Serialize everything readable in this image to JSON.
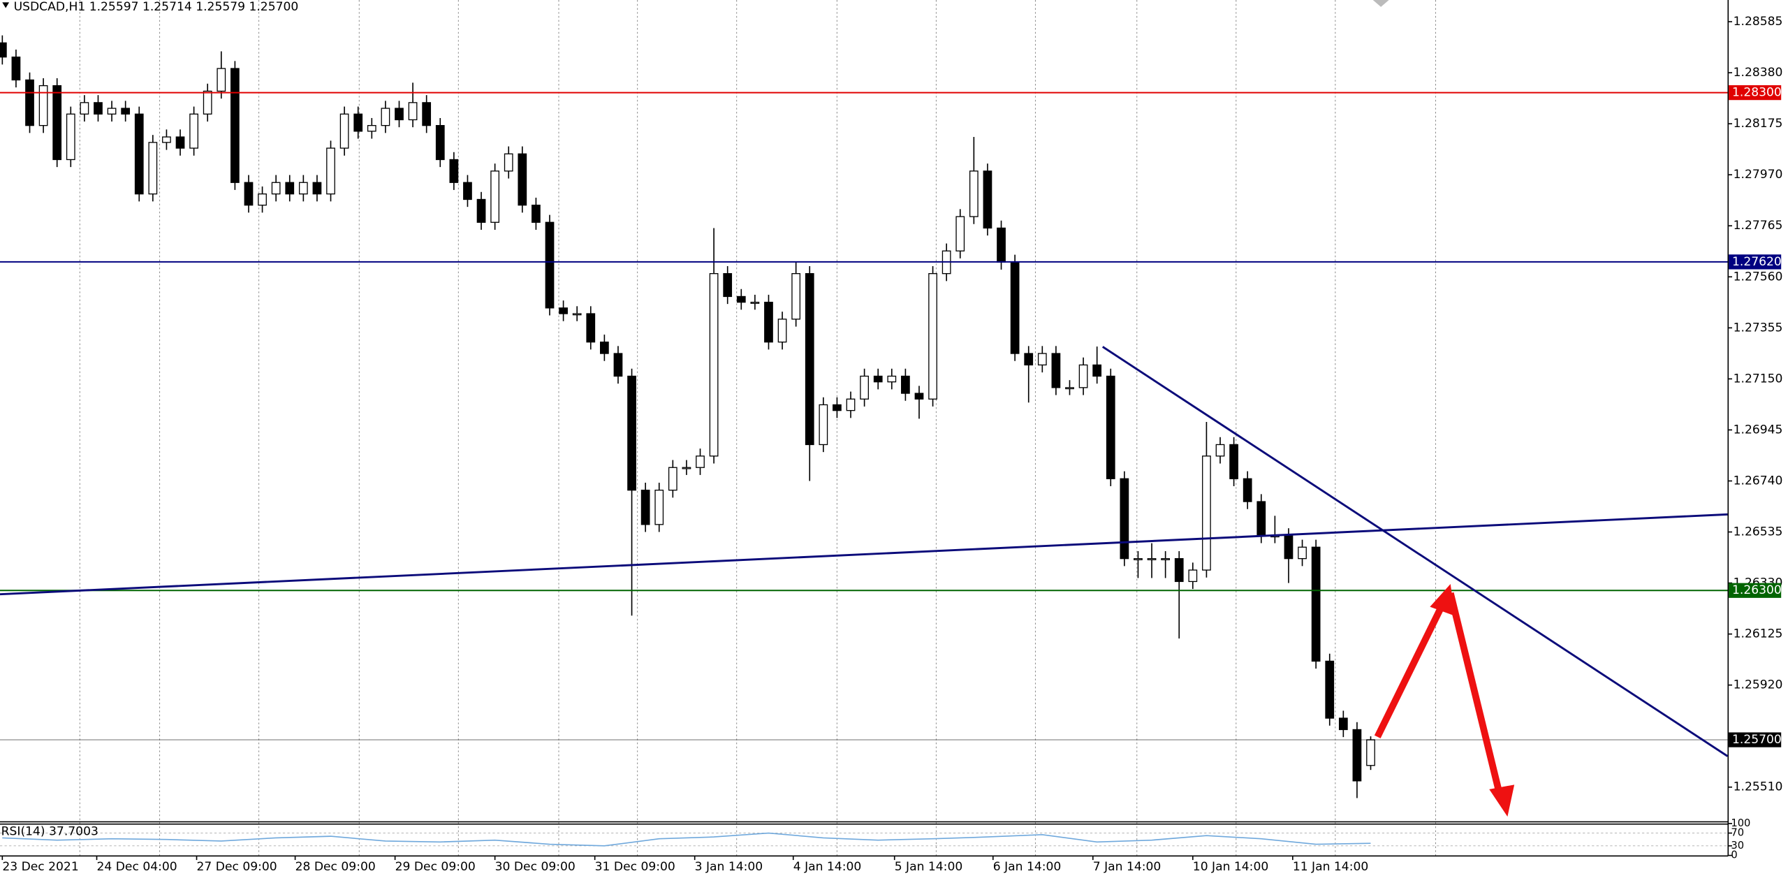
{
  "chart_data": [
    {
      "type": "candlestick",
      "title": "USDCAD,H1  1.25597 1.25714 1.25579 1.25700",
      "open": [
        1.285,
        1.28443,
        1.28351,
        1.28168,
        1.28328,
        1.28031,
        1.28214,
        1.2826,
        1.28214,
        1.28237,
        1.28214,
        1.27893,
        1.281,
        1.28122,
        1.28077,
        1.28214,
        1.28306,
        1.28397,
        1.27939,
        1.27848,
        1.27893,
        1.27939,
        1.27893,
        1.27939,
        1.27893,
        1.28077,
        1.28214,
        1.28145,
        1.28168,
        1.28237,
        1.28191,
        1.2826,
        1.28168,
        1.28031,
        1.27939,
        1.27871,
        1.27779,
        1.27985,
        1.28054,
        1.27848,
        1.27779,
        1.27435,
        1.27412,
        1.27412,
        1.27298,
        1.27252,
        1.27161,
        1.26703,
        1.26565,
        1.26703,
        1.26794,
        1.26794,
        1.2684,
        1.27573,
        1.27481,
        1.27458,
        1.27458,
        1.27298,
        1.2739,
        1.27573,
        1.26886,
        1.27046,
        1.27023,
        1.27069,
        1.27161,
        1.27138,
        1.27161,
        1.27092,
        1.27069,
        1.27573,
        1.27664,
        1.27802,
        1.27985,
        1.27756,
        1.27619,
        1.27252,
        1.27206,
        1.27252,
        1.27115,
        1.27115,
        1.27206,
        1.27161,
        1.26749,
        1.26428,
        1.26428,
        1.26428,
        1.26428,
        1.26336,
        1.26382,
        1.2684,
        1.26886,
        1.26749,
        1.26657,
        1.2652,
        1.2652,
        1.26428,
        1.26474,
        1.26016,
        1.25787,
        1.25741,
        1.25597
      ],
      "high": [
        1.2853,
        1.28473,
        1.28381,
        1.28358,
        1.28358,
        1.28244,
        1.2829,
        1.2829,
        1.28267,
        1.28267,
        1.28244,
        1.2813,
        1.28152,
        1.28152,
        1.28244,
        1.28336,
        1.28466,
        1.28427,
        1.27969,
        1.27923,
        1.27969,
        1.27969,
        1.27969,
        1.27969,
        1.28107,
        1.28244,
        1.28244,
        1.28198,
        1.28267,
        1.28267,
        1.2834,
        1.2829,
        1.28198,
        1.28061,
        1.27969,
        1.27901,
        1.28015,
        1.28084,
        1.28084,
        1.27878,
        1.27809,
        1.27465,
        1.27442,
        1.27442,
        1.27328,
        1.27282,
        1.27191,
        1.26733,
        1.26733,
        1.26824,
        1.26824,
        1.2687,
        1.27756,
        1.27603,
        1.27511,
        1.27488,
        1.27488,
        1.2742,
        1.2762,
        1.27603,
        1.27076,
        1.27076,
        1.27099,
        1.27191,
        1.27191,
        1.27191,
        1.27191,
        1.27122,
        1.27603,
        1.27694,
        1.27832,
        1.28122,
        1.28015,
        1.27786,
        1.27649,
        1.27282,
        1.27282,
        1.27282,
        1.27145,
        1.27236,
        1.2728,
        1.27191,
        1.26779,
        1.26458,
        1.2649,
        1.26458,
        1.26458,
        1.26412,
        1.26977,
        1.26916,
        1.26916,
        1.26779,
        1.26687,
        1.266,
        1.2655,
        1.26504,
        1.26504,
        1.26046,
        1.25817,
        1.25771,
        1.25714
      ],
      "low": [
        1.28413,
        1.28321,
        1.28138,
        1.28138,
        1.28001,
        1.28001,
        1.28184,
        1.28184,
        1.28184,
        1.28184,
        1.27863,
        1.27863,
        1.2807,
        1.28047,
        1.28047,
        1.28184,
        1.28276,
        1.27909,
        1.27818,
        1.27818,
        1.27863,
        1.27863,
        1.27863,
        1.27863,
        1.27863,
        1.28047,
        1.28115,
        1.28115,
        1.28138,
        1.28161,
        1.28161,
        1.28138,
        1.28001,
        1.27909,
        1.27841,
        1.27749,
        1.27749,
        1.27955,
        1.27818,
        1.27749,
        1.27405,
        1.27382,
        1.27382,
        1.27268,
        1.27222,
        1.27131,
        1.26199,
        1.26535,
        1.26535,
        1.26673,
        1.26764,
        1.26764,
        1.2681,
        1.27451,
        1.27428,
        1.27428,
        1.27268,
        1.27268,
        1.2736,
        1.2674,
        1.26856,
        1.26993,
        1.26993,
        1.27039,
        1.27108,
        1.27108,
        1.27062,
        1.2699,
        1.27039,
        1.27543,
        1.27634,
        1.27772,
        1.27726,
        1.27589,
        1.27222,
        1.27055,
        1.27176,
        1.27085,
        1.27085,
        1.27085,
        1.27131,
        1.26719,
        1.26398,
        1.2635,
        1.2635,
        1.2635,
        1.26107,
        1.26306,
        1.26352,
        1.2681,
        1.26719,
        1.26627,
        1.2649,
        1.2649,
        1.2633,
        1.26398,
        1.25986,
        1.25757,
        1.25711,
        1.25466,
        1.25579
      ],
      "close": [
        1.28443,
        1.28351,
        1.28168,
        1.28328,
        1.28031,
        1.28214,
        1.2826,
        1.28214,
        1.28237,
        1.28214,
        1.27893,
        1.281,
        1.28122,
        1.28077,
        1.28214,
        1.28306,
        1.28397,
        1.27939,
        1.27848,
        1.27893,
        1.27939,
        1.27893,
        1.27939,
        1.27893,
        1.28077,
        1.28214,
        1.28145,
        1.28168,
        1.28237,
        1.28191,
        1.2826,
        1.28168,
        1.28031,
        1.27939,
        1.27871,
        1.27779,
        1.27985,
        1.28054,
        1.27848,
        1.27779,
        1.27435,
        1.27412,
        1.27412,
        1.27298,
        1.27252,
        1.27161,
        1.26703,
        1.26565,
        1.26703,
        1.26794,
        1.26794,
        1.2684,
        1.27573,
        1.27481,
        1.27458,
        1.27458,
        1.27298,
        1.2739,
        1.27573,
        1.26886,
        1.27046,
        1.27023,
        1.27069,
        1.27161,
        1.27138,
        1.27161,
        1.27092,
        1.27069,
        1.27573,
        1.27664,
        1.27802,
        1.27985,
        1.27756,
        1.27619,
        1.27252,
        1.27206,
        1.27252,
        1.27115,
        1.27115,
        1.27206,
        1.27161,
        1.26749,
        1.26428,
        1.26428,
        1.26428,
        1.26428,
        1.26336,
        1.26382,
        1.2684,
        1.26886,
        1.26749,
        1.26657,
        1.2652,
        1.2652,
        1.26428,
        1.26474,
        1.26016,
        1.25787,
        1.25741,
        1.25535,
        1.257
      ],
      "color_up": "#ffffff",
      "color_down": "#000000",
      "xlim": [
        -0.17,
        126.08
      ],
      "ylim": [
        1.25373,
        1.28672
      ],
      "yticks": [
        1.28585,
        {
          "value": 1.2838,
          "label": "1.28380"
        },
        1.28175,
        {
          "value": 1.2797,
          "label": "1.27970"
        },
        1.27765,
        {
          "value": 1.2756,
          "label": "1.27560"
        },
        1.27355,
        {
          "value": 1.2715,
          "label": "1.27150"
        },
        1.26945,
        {
          "value": 1.2674,
          "label": "1.26740"
        },
        1.26535,
        {
          "value": 1.2633,
          "label": "1.26330"
        },
        1.26125,
        {
          "value": 1.2592,
          "label": "1.25920"
        },
        {
          "value": 1.2551,
          "label": "1.25510"
        }
      ],
      "xticks": [
        {
          "value": 0,
          "label": "23 Dec 2021"
        },
        {
          "value": 6.9,
          "label": "24 Dec 04:00"
        },
        {
          "value": 14.2,
          "label": "27 Dec 09:00"
        },
        {
          "value": 21.4,
          "label": "28 Dec 09:00"
        },
        {
          "value": 28.7,
          "label": "29 Dec 09:00"
        },
        {
          "value": 36,
          "label": "30 Dec 09:00"
        },
        {
          "value": 43.3,
          "label": "31 Dec 09:00"
        },
        {
          "value": 50.6,
          "label": "3 Jan 14:00"
        },
        {
          "value": 57.8,
          "label": "4 Jan 14:00"
        },
        {
          "value": 65.2,
          "label": "5 Jan 14:00"
        },
        {
          "value": 72.4,
          "label": "6 Jan 14:00"
        },
        {
          "value": 79.7,
          "label": "7 Jan 14:00"
        },
        {
          "value": 87,
          "label": "10 Jan 14:00"
        },
        {
          "value": 94.3,
          "label": "11 Jan 14:00"
        }
      ],
      "levels": [
        {
          "value": 1.283,
          "label": "1.28300",
          "color": "#e00000"
        },
        {
          "value": 1.2762,
          "label": "1.27620",
          "color": "#000080"
        },
        {
          "value": 1.263,
          "label": "1.26300",
          "color": "#006400"
        },
        {
          "value": 1.257,
          "label": "1.25700",
          "color": "#000000"
        }
      ]
    },
    {
      "type": "line",
      "title": "RSI(14) 37.7003",
      "color": "#6fa8dc",
      "x": [
        0,
        4,
        8,
        12,
        16,
        20,
        24,
        28,
        32,
        36,
        40,
        44,
        48,
        52,
        56,
        60,
        64,
        68,
        72,
        76,
        80,
        84,
        88,
        92,
        96,
        100
      ],
      "values": [
        55,
        48,
        52,
        50,
        45,
        55,
        60,
        45,
        42,
        48,
        35,
        30,
        52,
        58,
        70,
        55,
        48,
        52,
        58,
        65,
        42,
        48,
        62,
        52,
        35,
        37.7003
      ],
      "xlim": [
        -0.17,
        126.08
      ],
      "ylim": [
        0,
        100
      ],
      "yticks": [
        100,
        70,
        30,
        0
      ]
    }
  ]
}
